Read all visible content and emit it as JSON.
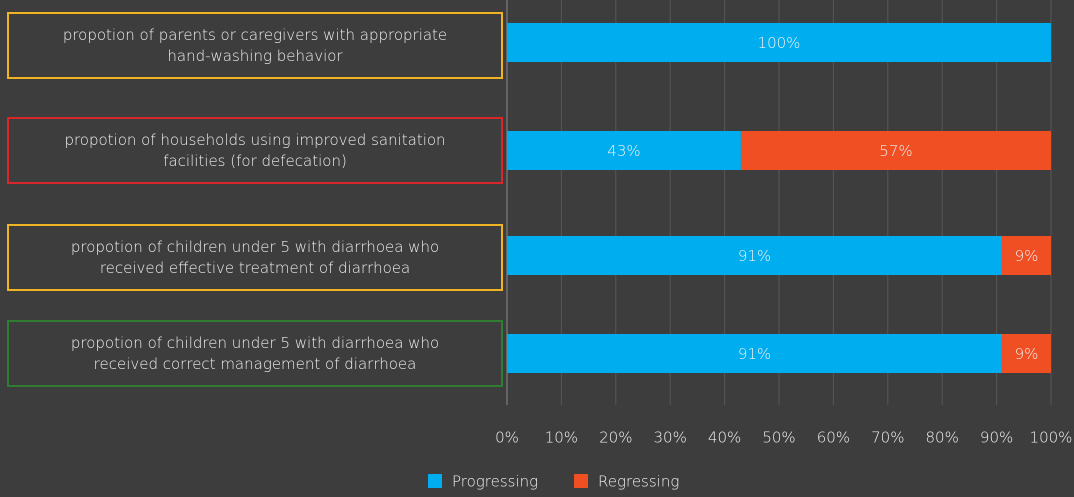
{
  "chart_data": {
    "type": "stacked_bar_horizontal",
    "categories": [
      "propotion of parents or caregivers with appropriate hand-washing behavior",
      "propotion of households using improved sanitation facilities (for defecation)",
      "propotion of children under 5 with diarrhoea who received effective treatment of diarrhoea",
      "propotion of children under 5 with diarrhoea who received correct management of diarrhoea"
    ],
    "category_border_colors": [
      "#f0b323",
      "#d9262b",
      "#f0b323",
      "#2e7d32"
    ],
    "series": [
      {
        "name": "Progressing",
        "color": "#00aeef",
        "values": [
          100,
          43,
          91,
          91
        ],
        "value_labels": [
          "100%",
          "43%",
          "91%",
          "91%"
        ]
      },
      {
        "name": "Regressing",
        "color": "#f04e23",
        "values": [
          0,
          57,
          9,
          9
        ],
        "value_labels": [
          null,
          "57%",
          "9%",
          "9%"
        ]
      }
    ],
    "xlim": [
      0,
      100
    ],
    "xticks": [
      {
        "value": 0,
        "label": "0%"
      },
      {
        "value": 10,
        "label": "10%"
      },
      {
        "value": 20,
        "label": "20%"
      },
      {
        "value": 30,
        "label": "30%"
      },
      {
        "value": 40,
        "label": "40%"
      },
      {
        "value": 50,
        "label": "50%"
      },
      {
        "value": 60,
        "label": "60%"
      },
      {
        "value": 70,
        "label": "70%"
      },
      {
        "value": 80,
        "label": "80%"
      },
      {
        "value": 90,
        "label": "90%"
      },
      {
        "value": 100,
        "label": "100%"
      }
    ],
    "grid": true,
    "legend": "bottom"
  }
}
